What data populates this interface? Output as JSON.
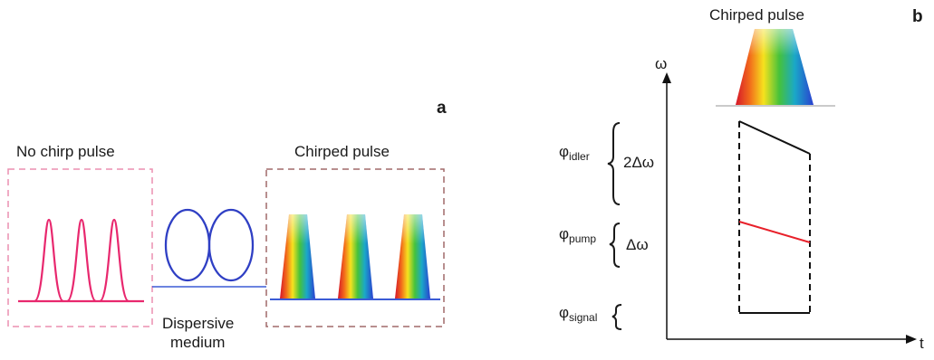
{
  "panel_a": {
    "letter": "a",
    "left_title": "No chirp pulse",
    "right_title": "Chirped pulse",
    "medium_label_line1": "Dispersive",
    "medium_label_line2": "medium"
  },
  "panel_b": {
    "letter": "b",
    "title": "Chirped pulse",
    "y_axis": "ω",
    "x_axis": "t",
    "phi_idler": {
      "symbol": "φ",
      "sub": "idler",
      "delta": "2Δω"
    },
    "phi_pump": {
      "symbol": "φ",
      "sub": "pump",
      "delta": "Δω"
    },
    "phi_signal": {
      "symbol": "φ",
      "sub": "signal"
    }
  },
  "colors": {
    "pulse_pink": "#e8286e",
    "box_pink": "#ec8fb0",
    "box_brown": "#a06a6a",
    "fiber_blue": "#2f3fc4",
    "baseline_blue": "#3b5bd6",
    "pump_red": "#e8202a",
    "line_black": "#111111"
  }
}
